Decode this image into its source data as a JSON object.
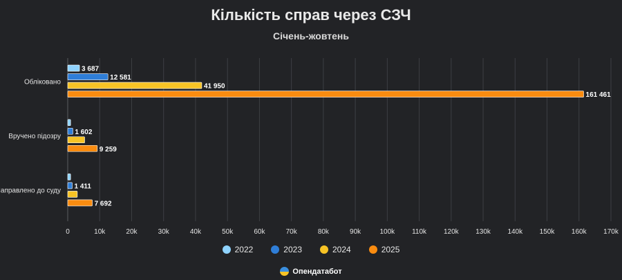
{
  "chart_data": {
    "type": "bar",
    "orientation": "horizontal",
    "title": "Кількість справ через СЗЧ",
    "subtitle": "Січень-жовтень",
    "categories": [
      "Обліковано",
      "Вручено підозру",
      "Направлено до суду"
    ],
    "series": [
      {
        "name": "2022",
        "color": "#8fd3fe",
        "values": [
          3687,
          900,
          900
        ],
        "labels": [
          "3 687",
          "",
          ""
        ]
      },
      {
        "name": "2023",
        "color": "#2f7ed8",
        "values": [
          12581,
          1602,
          1411
        ],
        "labels": [
          "12 581",
          "1 602",
          "1 411"
        ]
      },
      {
        "name": "2024",
        "color": "#f7c325",
        "values": [
          41950,
          5300,
          3000
        ],
        "labels": [
          "41 950",
          "",
          ""
        ]
      },
      {
        "name": "2025",
        "color": "#fa8c10",
        "values": [
          161461,
          9259,
          7692
        ],
        "labels": [
          "161 461",
          "9 259",
          "7 692"
        ]
      }
    ],
    "xlim": [
      0,
      170000
    ],
    "xticks": [
      0,
      10000,
      20000,
      30000,
      40000,
      50000,
      60000,
      70000,
      80000,
      90000,
      100000,
      110000,
      120000,
      130000,
      140000,
      150000,
      160000,
      170000
    ],
    "xtick_labels": [
      "0",
      "10k",
      "20k",
      "30k",
      "40k",
      "50k",
      "60k",
      "70k",
      "80k",
      "90k",
      "100k",
      "110k",
      "120k",
      "130k",
      "140k",
      "150k",
      "160k",
      "170k"
    ],
    "grid": true,
    "legend": "bottom-center"
  },
  "brand": {
    "name": "Опендатабот",
    "logo_colors": [
      "#3a8fe0",
      "#f7c325"
    ]
  }
}
